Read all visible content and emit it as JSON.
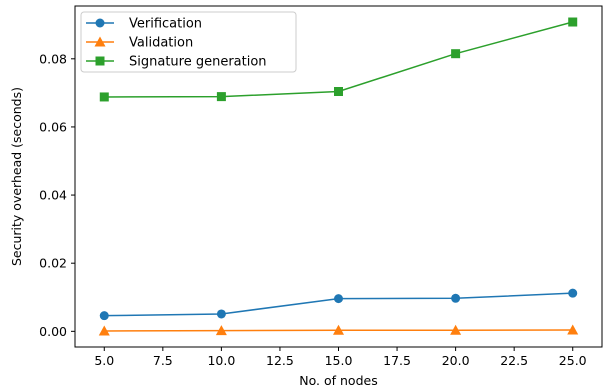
{
  "chart_data": {
    "type": "line",
    "title": "",
    "xlabel": "No. of nodes",
    "ylabel": "Security overhead (seconds)",
    "x": [
      5,
      10,
      15,
      20,
      25
    ],
    "xlim": [
      3.75,
      26.25
    ],
    "ylim": [
      -0.0046,
      0.0955
    ],
    "xticks": [
      5.0,
      7.5,
      10.0,
      12.5,
      15.0,
      17.5,
      20.0,
      22.5,
      25.0
    ],
    "xtick_labels": [
      "5.0",
      "7.5",
      "10.0",
      "12.5",
      "15.0",
      "17.5",
      "20.0",
      "22.5",
      "25.0"
    ],
    "yticks": [
      0.0,
      0.02,
      0.04,
      0.06,
      0.08
    ],
    "ytick_labels": [
      "0.00",
      "0.02",
      "0.04",
      "0.06",
      "0.08"
    ],
    "grid": false,
    "legend_position": "top-left",
    "series": [
      {
        "name": "Verification",
        "color": "#1f77b4",
        "marker": "circle",
        "values": [
          0.0046,
          0.0051,
          0.0096,
          0.0097,
          0.0112
        ]
      },
      {
        "name": "Validation",
        "color": "#ff7f0e",
        "marker": "triangle",
        "values": [
          0.0001,
          0.0002,
          0.0003,
          0.0003,
          0.0004
        ]
      },
      {
        "name": "Signature generation",
        "color": "#2ca02c",
        "marker": "square",
        "values": [
          0.0688,
          0.0689,
          0.0704,
          0.0815,
          0.0908
        ]
      }
    ]
  }
}
